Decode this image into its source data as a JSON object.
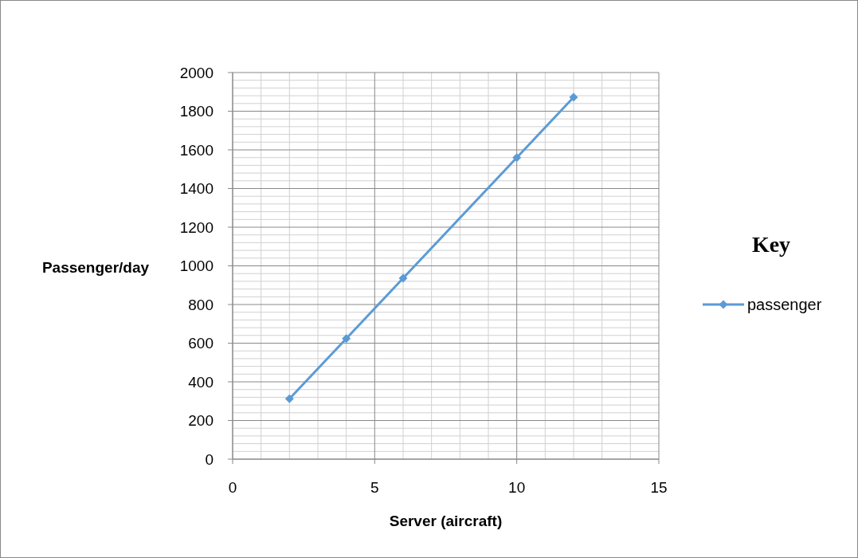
{
  "chart_data": {
    "type": "line",
    "xlabel": "Server (aircraft)",
    "ylabel": "Passenger/day",
    "legend_title": "Key",
    "x": [
      2,
      4,
      6,
      10,
      12
    ],
    "series": [
      {
        "name": "passenger",
        "color": "#5b9bd5",
        "values": [
          312,
          624,
          936,
          1560,
          1872
        ]
      }
    ],
    "xlim": [
      0,
      15
    ],
    "xticks": [
      0,
      5,
      10,
      15
    ],
    "ylim": [
      0,
      2000
    ],
    "yticks": [
      0,
      200,
      400,
      600,
      800,
      1000,
      1200,
      1400,
      1600,
      1800,
      2000
    ],
    "grid": true,
    "legend": "right",
    "marker": "diamond",
    "line_style": "solid"
  }
}
